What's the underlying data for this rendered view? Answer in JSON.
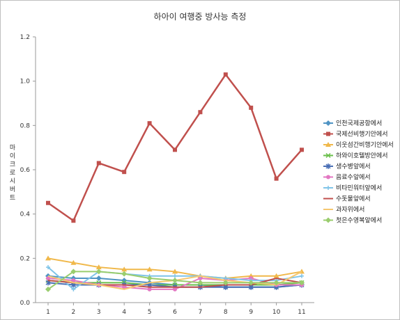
{
  "chart_data": {
    "type": "line",
    "title": "하아이 여행중 방사능 측정",
    "ylabel": "마이크로시버트",
    "xlabel": "",
    "x": [
      1,
      2,
      3,
      4,
      5,
      6,
      7,
      8,
      9,
      10,
      11
    ],
    "ylim": [
      0,
      1.2
    ],
    "yticks": [
      "0.0",
      "0.2",
      "0.4",
      "0.6",
      "0.8",
      "1.0",
      "1.2"
    ],
    "grid": false,
    "legend_position": "right",
    "series": [
      {
        "name": "인천국제공항에서",
        "color": "#4f94c4",
        "marker": "diamond",
        "values": [
          0.12,
          0.11,
          0.11,
          0.1,
          0.09,
          0.08,
          0.08,
          0.07,
          0.07,
          0.07,
          0.08
        ]
      },
      {
        "name": "국제선비행기안에서",
        "color": "#c0504d",
        "marker": "square",
        "values": [
          0.45,
          0.37,
          0.63,
          0.59,
          0.81,
          0.69,
          0.86,
          1.03,
          0.88,
          0.56,
          0.69
        ]
      },
      {
        "name": "이웃섬간비행기안에서",
        "color": "#f0b84a",
        "marker": "triangle",
        "values": [
          0.2,
          0.18,
          0.16,
          0.15,
          0.15,
          0.14,
          0.12,
          0.11,
          0.12,
          0.12,
          0.14
        ]
      },
      {
        "name": "하와이호텔방안에서",
        "color": "#6abf4b",
        "marker": "x",
        "values": [
          0.1,
          0.09,
          0.09,
          0.09,
          0.08,
          0.08,
          0.08,
          0.08,
          0.08,
          0.08,
          0.09
        ]
      },
      {
        "name": "생수병앞에서",
        "color": "#4a6fb5",
        "marker": "star",
        "values": [
          0.09,
          0.08,
          0.08,
          0.08,
          0.08,
          0.07,
          0.07,
          0.07,
          0.07,
          0.07,
          0.08
        ]
      },
      {
        "name": "음료수앞에서",
        "color": "#e377c2",
        "marker": "circle",
        "values": [
          0.11,
          0.1,
          0.08,
          0.07,
          0.06,
          0.06,
          0.11,
          0.1,
          0.11,
          0.08,
          0.08
        ]
      },
      {
        "name": "비타민워터앞에서",
        "color": "#7fc4e8",
        "marker": "plus",
        "values": [
          0.16,
          0.06,
          0.14,
          0.13,
          0.12,
          0.12,
          0.12,
          0.11,
          0.1,
          0.1,
          0.12
        ]
      },
      {
        "name": "수돗물앞에서",
        "color": "#c0504d",
        "marker": "none",
        "values": [
          0.1,
          0.09,
          0.08,
          0.08,
          0.07,
          0.07,
          0.07,
          0.08,
          0.08,
          0.11,
          0.09
        ]
      },
      {
        "name": "과자위에서",
        "color": "#f5c870",
        "marker": "none",
        "values": [
          0.12,
          0.09,
          0.08,
          0.06,
          0.09,
          0.1,
          0.12,
          0.1,
          0.09,
          0.08,
          0.14
        ]
      },
      {
        "name": "첫은수영복앞에서",
        "color": "#9acd6e",
        "marker": "diamond",
        "values": [
          0.06,
          0.14,
          0.14,
          0.13,
          0.11,
          0.1,
          0.09,
          0.09,
          0.09,
          0.09,
          0.09
        ]
      }
    ]
  }
}
